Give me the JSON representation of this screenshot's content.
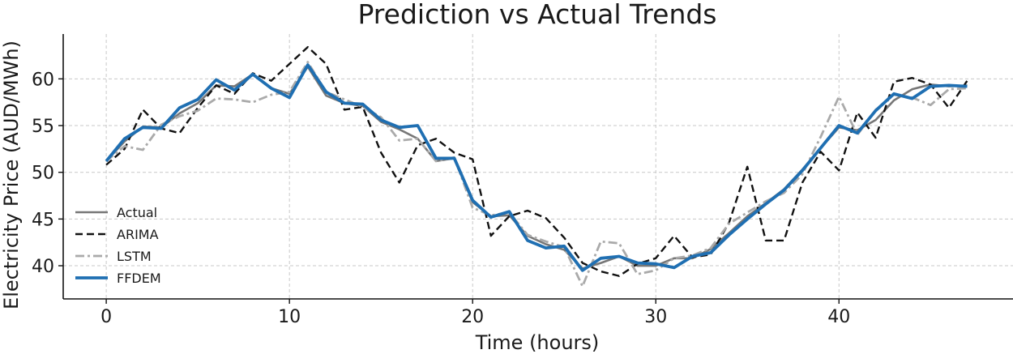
{
  "chart_data": {
    "type": "line",
    "title": "Prediction vs Actual Trends",
    "xlabel": "Time (hours)",
    "ylabel": "Electricity Price (AUD/MWh)",
    "xlim": [
      -2.35,
      49.5
    ],
    "ylim": [
      36.45,
      64.8
    ],
    "xticks": [
      0,
      10,
      20,
      30,
      40
    ],
    "yticks": [
      40,
      45,
      50,
      55,
      60
    ],
    "grid": true,
    "legend_position": "center-left",
    "x": [
      0,
      1,
      2,
      3,
      4,
      5,
      6,
      7,
      8,
      9,
      10,
      11,
      12,
      13,
      14,
      15,
      16,
      17,
      18,
      19,
      20,
      21,
      22,
      23,
      24,
      25,
      26,
      27,
      28,
      29,
      30,
      31,
      32,
      33,
      34,
      35,
      36,
      37,
      38,
      39,
      40,
      41,
      42,
      43,
      44,
      45,
      46,
      47
    ],
    "series": [
      {
        "name": "Actual",
        "color": "#777777",
        "dash": "solid",
        "values": [
          51.2,
          53.3,
          54.9,
          54.8,
          56.3,
          57.4,
          59.3,
          59.2,
          60.5,
          59.0,
          58.4,
          61.3,
          58.2,
          57.4,
          57.1,
          55.4,
          54.6,
          53.6,
          51.2,
          51.5,
          46.8,
          45.3,
          45.4,
          43.2,
          42.3,
          41.7,
          39.7,
          40.3,
          41.0,
          40.0,
          40.0,
          40.8,
          40.8,
          41.8,
          43.5,
          45.3,
          46.7,
          48.2,
          50.3,
          52.6,
          54.8,
          54.5,
          55.6,
          57.7,
          58.9,
          59.4,
          59.2,
          59.3
        ]
      },
      {
        "name": "ARIMA",
        "color": "#111111",
        "dash": "dashed",
        "values": [
          50.8,
          52.5,
          56.7,
          54.7,
          54.2,
          56.9,
          59.3,
          58.4,
          60.6,
          59.8,
          61.6,
          63.4,
          61.6,
          56.7,
          57.0,
          52.1,
          48.9,
          52.9,
          53.6,
          52.1,
          51.4,
          43.2,
          45.3,
          45.9,
          45.1,
          43.0,
          40.3,
          39.4,
          38.9,
          40.2,
          40.8,
          43.2,
          40.9,
          41.2,
          44.6,
          50.6,
          42.7,
          42.7,
          48.9,
          52.2,
          50.2,
          56.4,
          53.7,
          59.7,
          60.1,
          59.4,
          56.9,
          59.8
        ]
      },
      {
        "name": "LSTM",
        "color": "#aaaaaa",
        "dash": "dashdot",
        "values": [
          51.2,
          52.8,
          52.4,
          55.1,
          56.0,
          56.6,
          57.9,
          57.8,
          57.5,
          58.3,
          58.6,
          61.8,
          58.6,
          57.8,
          57.0,
          55.9,
          53.4,
          53.6,
          51.2,
          51.6,
          46.2,
          45.4,
          45.7,
          43.3,
          42.6,
          42.0,
          37.8,
          42.6,
          42.4,
          39.1,
          39.5,
          40.8,
          41.1,
          41.9,
          44.5,
          45.7,
          46.9,
          47.8,
          49.8,
          53.8,
          58.1,
          54.0,
          56.7,
          58.3,
          58.0,
          57.2,
          58.9,
          59.0
        ]
      },
      {
        "name": "FFDEM",
        "color": "#1f6fb2",
        "dash": "solid",
        "values": [
          51.2,
          53.6,
          54.8,
          54.7,
          56.9,
          57.8,
          59.9,
          58.8,
          60.5,
          59.0,
          58.0,
          61.5,
          58.6,
          57.4,
          57.3,
          55.6,
          54.8,
          55.0,
          51.5,
          51.5,
          47.0,
          45.2,
          45.8,
          42.7,
          41.9,
          42.1,
          39.5,
          40.8,
          41.0,
          40.3,
          40.2,
          39.8,
          41.0,
          41.4,
          43.3,
          45.0,
          46.6,
          48.1,
          50.2,
          52.6,
          55.0,
          54.2,
          56.6,
          58.4,
          57.9,
          59.2,
          59.3,
          59.2
        ]
      }
    ]
  }
}
